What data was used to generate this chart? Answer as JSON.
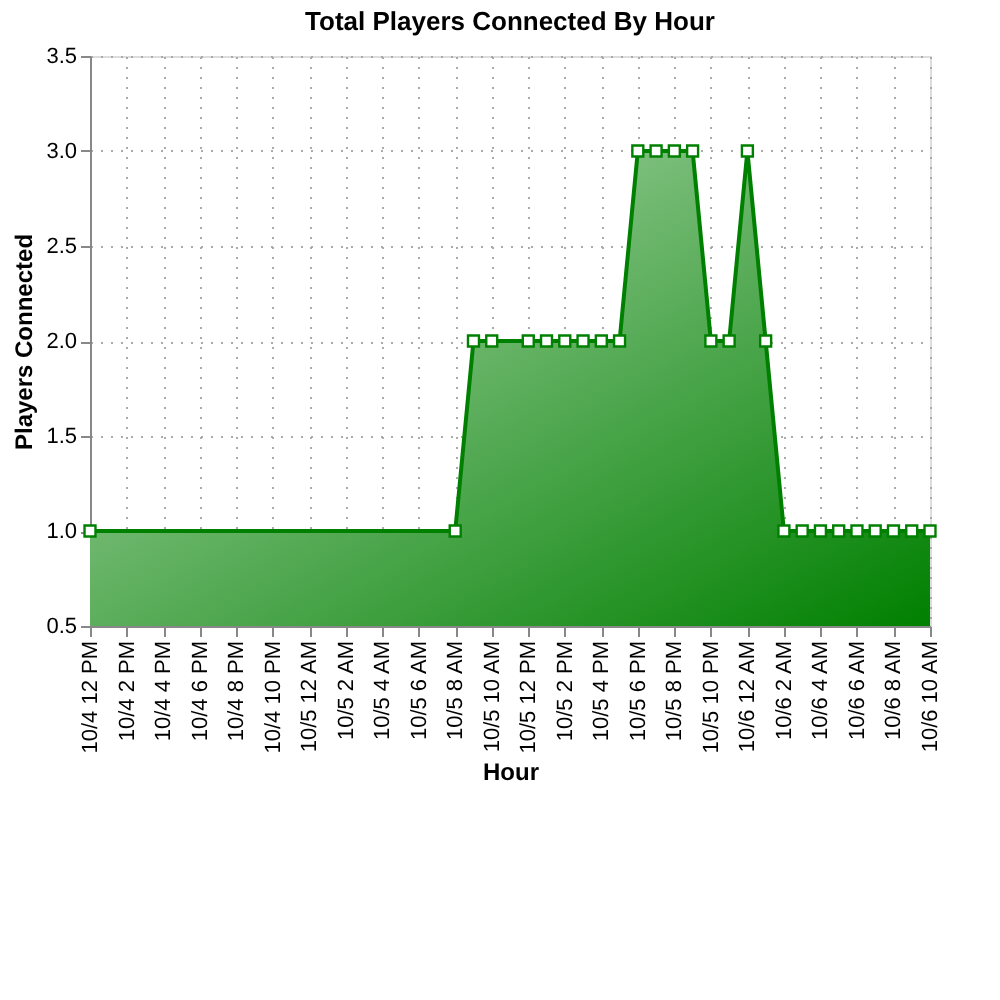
{
  "chart_data": {
    "type": "area",
    "title": "Total Players Connected By Hour",
    "xlabel": "Hour",
    "ylabel": "Players Connected",
    "categories": [
      "10/4 12 PM",
      null,
      "10/4 2 PM",
      null,
      "10/4 4 PM",
      null,
      "10/4 6 PM",
      null,
      "10/4 8 PM",
      null,
      "10/4 10 PM",
      null,
      "10/5 12 AM",
      null,
      "10/5 2 AM",
      null,
      "10/5 4 AM",
      null,
      "10/5 6 AM",
      null,
      "10/5 8 AM",
      null,
      "10/5 10 AM",
      null,
      "10/5 12 PM",
      null,
      "10/5 2 PM",
      null,
      "10/5 4 PM",
      null,
      "10/5 6 PM",
      null,
      "10/5 8 PM",
      null,
      "10/5 10 PM",
      null,
      "10/6 12 AM",
      null,
      "10/6 2 AM",
      null,
      "10/6 4 AM",
      null,
      "10/6 6 AM",
      null,
      "10/6 8 AM",
      null,
      "10/6 10 AM"
    ],
    "series": [
      {
        "color": "#008000",
        "values": [
          1,
          null,
          null,
          null,
          null,
          null,
          null,
          null,
          null,
          null,
          null,
          null,
          null,
          null,
          null,
          null,
          null,
          null,
          null,
          null,
          1,
          2,
          2,
          null,
          2,
          2,
          2,
          2,
          2,
          2,
          3,
          3,
          3,
          3,
          2,
          2,
          3,
          2,
          1,
          1,
          1,
          1,
          1,
          1,
          1,
          1,
          1
        ]
      }
    ],
    "ylim": [
      0.5,
      3.5
    ],
    "yticks": [
      {
        "value": 0.5,
        "label": "0.5"
      },
      {
        "value": 1,
        "label": "1.0"
      },
      {
        "value": 1.5,
        "label": "1.5"
      },
      {
        "value": 2,
        "label": "2.0"
      },
      {
        "value": 2.5,
        "label": "2.5"
      },
      {
        "value": 3,
        "label": "3.0"
      },
      {
        "value": 3.5,
        "label": "3.5"
      }
    ],
    "grid": true,
    "marker": "square",
    "line_style": "solid"
  }
}
